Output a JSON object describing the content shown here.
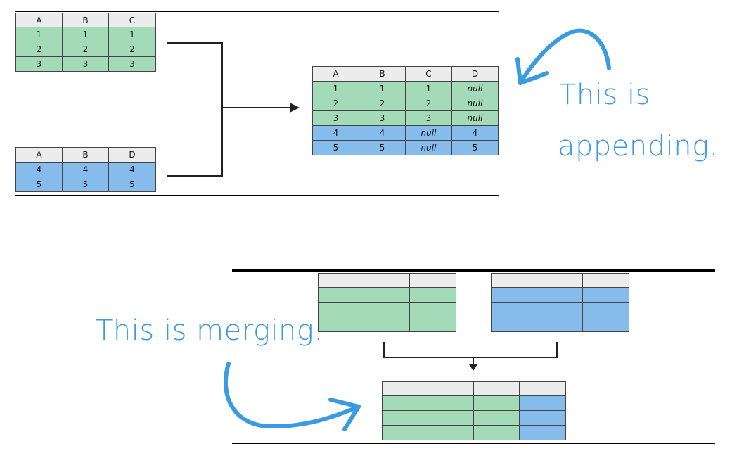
{
  "append": {
    "table1": {
      "headers": [
        "A",
        "B",
        "C"
      ],
      "rows": [
        [
          "1",
          "1",
          "1"
        ],
        [
          "2",
          "2",
          "2"
        ],
        [
          "3",
          "3",
          "3"
        ]
      ]
    },
    "table2": {
      "headers": [
        "A",
        "B",
        "D"
      ],
      "rows": [
        [
          "4",
          "4",
          "4"
        ],
        [
          "5",
          "5",
          "5"
        ]
      ]
    },
    "result": {
      "headers": [
        "A",
        "B",
        "C",
        "D"
      ],
      "rows": [
        [
          "1",
          "1",
          "1",
          "null"
        ],
        [
          "2",
          "2",
          "2",
          "null"
        ],
        [
          "3",
          "3",
          "3",
          "null"
        ],
        [
          "4",
          "4",
          "null",
          "4"
        ],
        [
          "5",
          "5",
          "null",
          "5"
        ]
      ]
    },
    "note_line1": "This is",
    "note_line2": "appending."
  },
  "merge": {
    "note_prefix": "This is ",
    "note_emphasis": "merging."
  },
  "colors": {
    "green": "#a3dab8",
    "blue": "#85bcec",
    "header": "#ececec",
    "annotation": "#3a9be0"
  }
}
